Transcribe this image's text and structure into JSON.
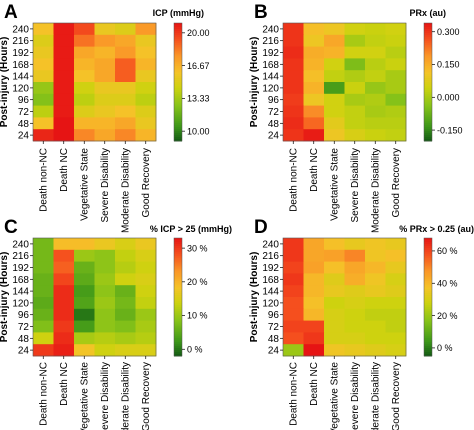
{
  "chart_data": [
    {
      "type": "heatmap",
      "panel": "A",
      "ylabel": "Post-injury (Hours)",
      "colorbar_title": "ICP (mmHg)",
      "colorbar_ticks": [
        {
          "value": 10.0,
          "label": "10.00"
        },
        {
          "value": 13.33,
          "label": "13.33"
        },
        {
          "value": 16.67,
          "label": "16.67"
        },
        {
          "value": 20.0,
          "label": "20.00"
        }
      ],
      "colorbar_range": [
        9,
        21
      ],
      "x_categories": [
        "Death non-NC",
        "Death NC",
        "Vegetative State",
        "Severe Disability",
        "Moderate Disability",
        "Good Recovery"
      ],
      "y_categories": [
        "240",
        "216",
        "192",
        "168",
        "144",
        "120",
        "96",
        "72",
        "48",
        "24"
      ],
      "values": [
        [
          16.0,
          20.8,
          19.5,
          15.5,
          15.0,
          17.5
        ],
        [
          15.0,
          20.8,
          18.5,
          17.5,
          17.0,
          15.5
        ],
        [
          15.5,
          20.8,
          17.0,
          16.5,
          17.5,
          16.0
        ],
        [
          16.0,
          20.8,
          16.5,
          17.0,
          19.0,
          16.5
        ],
        [
          15.5,
          20.8,
          16.0,
          17.0,
          19.0,
          15.5
        ],
        [
          13.0,
          20.8,
          14.5,
          15.5,
          15.5,
          14.5
        ],
        [
          12.5,
          20.8,
          14.0,
          15.0,
          15.0,
          14.0
        ],
        [
          14.0,
          20.8,
          15.0,
          15.5,
          16.0,
          15.0
        ],
        [
          16.0,
          21.0,
          16.5,
          16.5,
          17.0,
          15.5
        ],
        [
          20.5,
          21.0,
          18.0,
          17.0,
          18.0,
          16.5
        ]
      ]
    },
    {
      "type": "heatmap",
      "panel": "B",
      "ylabel": "Post-injury (Hours)",
      "colorbar_title": "PRx (au)",
      "colorbar_ticks": [
        {
          "value": -0.15,
          "label": "-0.150"
        },
        {
          "value": 0.0,
          "label": "0.000"
        },
        {
          "value": 0.15,
          "label": "0.150"
        },
        {
          "value": 0.3,
          "label": "0.300"
        }
      ],
      "colorbar_range": [
        -0.2,
        0.34
      ],
      "x_categories": [
        "Death non-NC",
        "Death NC",
        "Vegetative State",
        "Severe Disability",
        "Moderate Disability",
        "Good Recovery"
      ],
      "y_categories": [
        "240",
        "216",
        "192",
        "168",
        "144",
        "120",
        "96",
        "72",
        "48",
        "24"
      ],
      "values": [
        [
          0.3,
          0.12,
          0.1,
          0.05,
          0.04,
          0.05
        ],
        [
          0.3,
          0.1,
          0.16,
          0.0,
          0.03,
          0.04
        ],
        [
          0.31,
          0.15,
          0.14,
          0.05,
          0.05,
          0.02
        ],
        [
          0.3,
          0.14,
          0.05,
          -0.05,
          0.02,
          0.04
        ],
        [
          0.3,
          0.12,
          0.03,
          0.01,
          0.03,
          0.0
        ],
        [
          0.3,
          0.14,
          -0.12,
          0.04,
          -0.02,
          0.0
        ],
        [
          0.29,
          0.1,
          0.05,
          0.0,
          0.01,
          -0.04
        ],
        [
          0.3,
          0.2,
          0.05,
          0.03,
          0.0,
          0.01
        ],
        [
          0.31,
          0.24,
          0.08,
          0.03,
          0.02,
          0.02
        ],
        [
          0.3,
          0.33,
          0.1,
          0.06,
          0.04,
          0.03
        ]
      ]
    },
    {
      "type": "heatmap",
      "panel": "C",
      "ylabel": "Post-injury (Hours)",
      "colorbar_title": "% ICP > 25 (mmHg)",
      "colorbar_ticks": [
        {
          "value": 0,
          "label": "0 %"
        },
        {
          "value": 10,
          "label": "10 %"
        },
        {
          "value": 20,
          "label": "20 %"
        },
        {
          "value": 30,
          "label": "30 %"
        }
      ],
      "colorbar_range": [
        -2,
        33
      ],
      "x_categories": [
        "Death non-NC",
        "Death NC",
        "Vegetative State",
        "Severe Disability",
        "Moderate Disability",
        "Good Recovery"
      ],
      "y_categories": [
        "240",
        "216",
        "192",
        "168",
        "144",
        "120",
        "96",
        "72",
        "48",
        "24"
      ],
      "values": [
        [
          7,
          19,
          19,
          17,
          15,
          17
        ],
        [
          7,
          28,
          10,
          9,
          13,
          15
        ],
        [
          7,
          27,
          6,
          9,
          12,
          14
        ],
        [
          6,
          29,
          5,
          10,
          14,
          15
        ],
        [
          6,
          31,
          3,
          9,
          6,
          14
        ],
        [
          5,
          31,
          4,
          10,
          7,
          13
        ],
        [
          6,
          31,
          0,
          9,
          6,
          10
        ],
        [
          8,
          30,
          3,
          9,
          8,
          11
        ],
        [
          14,
          31,
          11,
          12,
          11,
          12
        ],
        [
          30,
          32,
          18,
          14,
          15,
          15
        ]
      ]
    },
    {
      "type": "heatmap",
      "panel": "D",
      "ylabel": "Post-injury (Hours)",
      "colorbar_title": "% PRx > 0.25 (au)",
      "colorbar_ticks": [
        {
          "value": 0,
          "label": "0 %"
        },
        {
          "value": 20,
          "label": "20 %"
        },
        {
          "value": 40,
          "label": "40 %"
        },
        {
          "value": 60,
          "label": "60 %"
        }
      ],
      "colorbar_range": [
        -5,
        68
      ],
      "x_categories": [
        "Death non-NC",
        "Death NC",
        "Vegetative State",
        "Severe Disability",
        "Moderate Disability",
        "Good Recovery"
      ],
      "y_categories": [
        "240",
        "216",
        "192",
        "168",
        "144",
        "120",
        "96",
        "72",
        "48",
        "24"
      ],
      "values": [
        [
          62,
          44,
          38,
          34,
          36,
          34
        ],
        [
          62,
          44,
          45,
          50,
          36,
          38
        ],
        [
          60,
          45,
          38,
          44,
          40,
          34
        ],
        [
          62,
          40,
          32,
          42,
          36,
          30
        ],
        [
          60,
          40,
          34,
          32,
          34,
          32
        ],
        [
          58,
          38,
          28,
          30,
          28,
          28
        ],
        [
          58,
          40,
          30,
          28,
          26,
          26
        ],
        [
          60,
          60,
          30,
          28,
          28,
          26
        ],
        [
          58,
          62,
          30,
          30,
          28,
          28
        ],
        [
          20,
          68,
          36,
          34,
          32,
          30
        ]
      ]
    }
  ]
}
